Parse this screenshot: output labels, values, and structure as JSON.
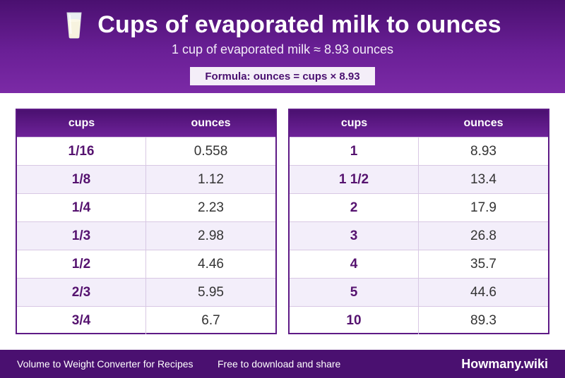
{
  "header": {
    "title": "Cups of evaporated milk to ounces",
    "icon": "milk-glass-icon",
    "subtitle": "1 cup of evaporated milk ≈ 8.93 ounces",
    "formula": "Formula: ounces = cups × 8.93"
  },
  "tables": {
    "left": {
      "col1": "cups",
      "col2": "ounces",
      "rows": [
        {
          "cups": "1/16",
          "ounces": "0.558"
        },
        {
          "cups": "1/8",
          "ounces": "1.12"
        },
        {
          "cups": "1/4",
          "ounces": "2.23"
        },
        {
          "cups": "1/3",
          "ounces": "2.98"
        },
        {
          "cups": "1/2",
          "ounces": "4.46"
        },
        {
          "cups": "2/3",
          "ounces": "5.95"
        },
        {
          "cups": "3/4",
          "ounces": "6.7"
        }
      ]
    },
    "right": {
      "col1": "cups",
      "col2": "ounces",
      "rows": [
        {
          "cups": "1",
          "ounces": "8.93"
        },
        {
          "cups": "1 1/2",
          "ounces": "13.4"
        },
        {
          "cups": "2",
          "ounces": "17.9"
        },
        {
          "cups": "3",
          "ounces": "26.8"
        },
        {
          "cups": "4",
          "ounces": "35.7"
        },
        {
          "cups": "5",
          "ounces": "44.6"
        },
        {
          "cups": "10",
          "ounces": "89.3"
        }
      ]
    }
  },
  "footer": {
    "left": "Volume to Weight Converter for Recipes",
    "middle": "Free to download and share",
    "brand": "Howmany.wiki"
  },
  "colors": {
    "primary": "#4a1070",
    "accent": "#6a1f96",
    "row_alt": "#f3eefa"
  }
}
